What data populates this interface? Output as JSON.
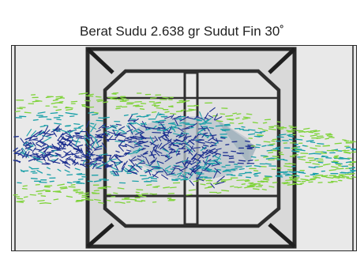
{
  "figure": {
    "title": "Berat Sudu 2.638 gr Sudut Fin 30˚"
  },
  "colors": {
    "background": "#ececec",
    "frame": "#2e2e2e",
    "flow_slow": "#1d2f8f",
    "flow_mid": "#1aa0a8",
    "flow_fast": "#7fd33a"
  }
}
